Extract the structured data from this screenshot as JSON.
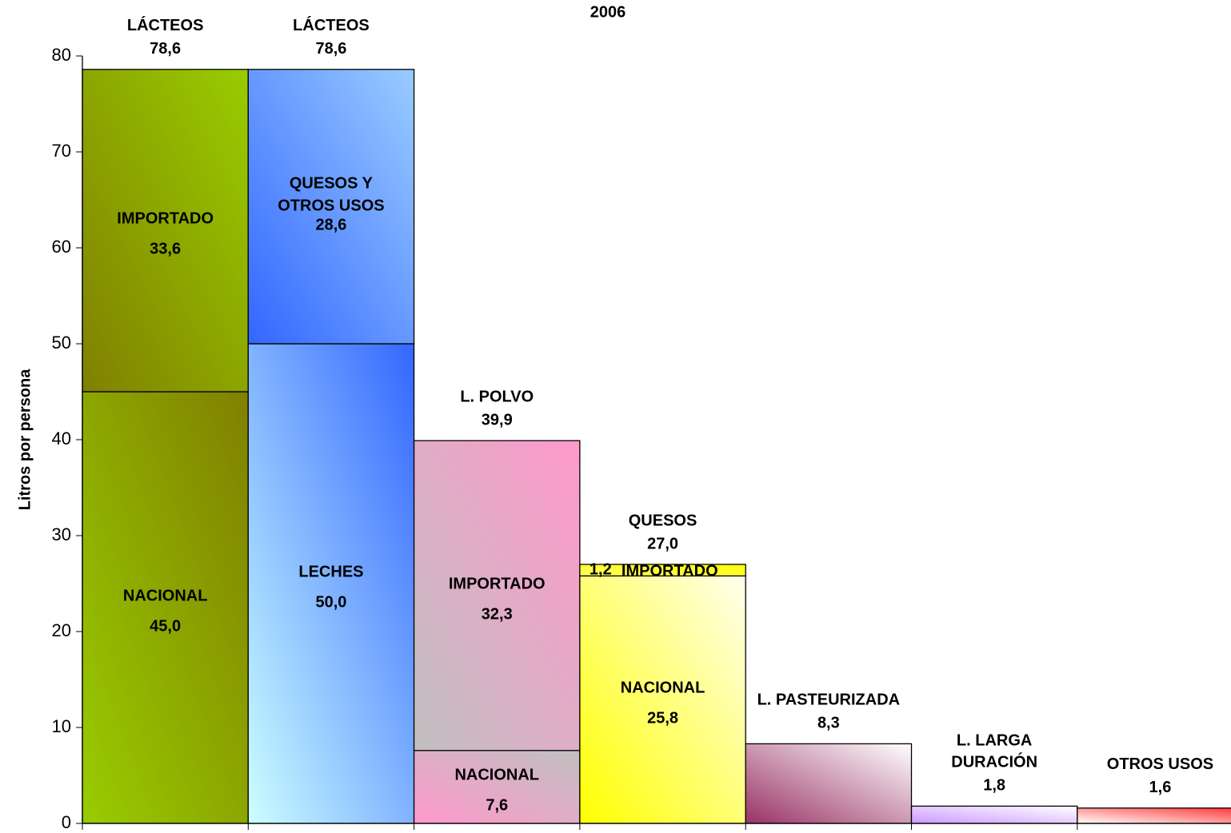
{
  "chart_data": {
    "type": "stacked-columns",
    "title": "2006",
    "y_label": "Litros por persona",
    "ylim": [
      0,
      80
    ],
    "yticks": [
      0,
      10,
      20,
      30,
      40,
      50,
      60,
      70,
      80
    ],
    "columns": [
      {
        "name": [
          "LÁCTEOS"
        ],
        "total": 78.6,
        "total_label": "78,6",
        "segments": [
          {
            "name": [
              "NACIONAL"
            ],
            "value": 45.0,
            "value_label": "45,0",
            "colors": [
              "#99cc00",
              "#808000"
            ]
          },
          {
            "name": [
              "IMPORTADO"
            ],
            "value": 33.6,
            "value_label": "33,6",
            "colors": [
              "#808000",
              "#99cc00"
            ]
          }
        ]
      },
      {
        "name": [
          "LÁCTEOS"
        ],
        "total": 78.6,
        "total_label": "78,6",
        "segments": [
          {
            "name": [
              "LECHES"
            ],
            "value": 50.0,
            "value_label": "50,0",
            "colors": [
              "#ccffff",
              "#3366ff"
            ]
          },
          {
            "name": [
              "QUESOS Y",
              "OTROS USOS"
            ],
            "value": 28.6,
            "value_label": "28,6",
            "colors": [
              "#3366ff",
              "#99ccff"
            ]
          }
        ]
      },
      {
        "name": [
          "L. POLVO"
        ],
        "total": 39.9,
        "total_label": "39,9",
        "segments": [
          {
            "name": [
              "NACIONAL"
            ],
            "value": 7.6,
            "value_label": "7,6",
            "colors": [
              "#ff99cc",
              "#c0c0c0"
            ]
          },
          {
            "name": [
              "IMPORTADO"
            ],
            "value": 32.3,
            "value_label": "32,3",
            "colors": [
              "#c0c0c0",
              "#ff99cc"
            ]
          }
        ]
      },
      {
        "name": [
          "QUESOS"
        ],
        "total": 27.0,
        "total_label": "27,0",
        "segments": [
          {
            "name": [
              "NACIONAL"
            ],
            "value": 25.8,
            "value_label": "25,8",
            "colors": [
              "#ffff00",
              "#ffffee"
            ]
          },
          {
            "name": [
              "IMPORTADO"
            ],
            "value": 1.2,
            "value_label": "1,2",
            "colors": [
              "#ffff66",
              "#ffff00"
            ]
          }
        ]
      },
      {
        "name": [
          "L. PASTEURIZADA"
        ],
        "total": 8.3,
        "total_label": "8,3",
        "colors": [
          "#993366",
          "#ffffff"
        ]
      },
      {
        "name": [
          "L. LARGA",
          "DURACIÓN"
        ],
        "total": 1.8,
        "total_label": "1,8",
        "colors": [
          "#cc99ff",
          "#ffffff"
        ]
      },
      {
        "name": [
          "OTROS USOS"
        ],
        "total": 1.6,
        "total_label": "1,6",
        "colors": [
          "#ffffff",
          "#ff3333"
        ]
      }
    ]
  }
}
